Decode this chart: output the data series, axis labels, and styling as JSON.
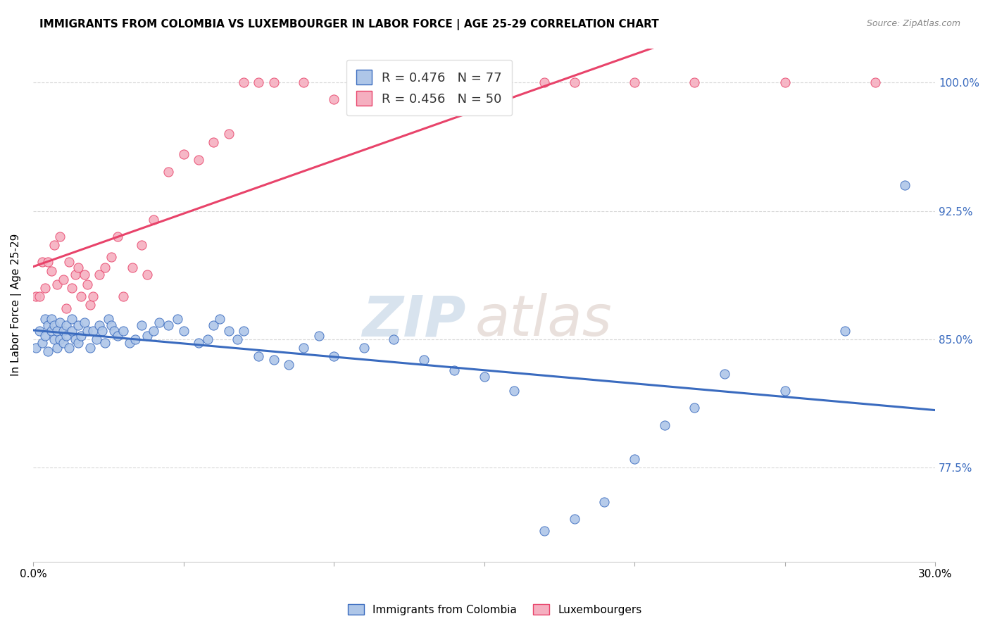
{
  "title": "IMMIGRANTS FROM COLOMBIA VS LUXEMBOURGER IN LABOR FORCE | AGE 25-29 CORRELATION CHART",
  "source": "Source: ZipAtlas.com",
  "ylabel": "In Labor Force | Age 25-29",
  "xlim": [
    0.0,
    0.3
  ],
  "ylim": [
    0.72,
    1.02
  ],
  "xticks": [
    0.0,
    0.05,
    0.1,
    0.15,
    0.2,
    0.25,
    0.3
  ],
  "xticklabels": [
    "0.0%",
    "",
    "",
    "",
    "",
    "",
    "30.0%"
  ],
  "yticks": [
    0.775,
    0.85,
    0.925,
    1.0
  ],
  "yticklabels": [
    "77.5%",
    "85.0%",
    "92.5%",
    "100.0%"
  ],
  "colombia_R": 0.476,
  "colombia_N": 77,
  "luxembourger_R": 0.456,
  "luxembourger_N": 50,
  "colombia_color": "#aec6e8",
  "luxembourger_color": "#f5afc0",
  "colombia_line_color": "#3a6bbf",
  "luxembourger_line_color": "#e8436a",
  "colombia_x": [
    0.001,
    0.002,
    0.003,
    0.004,
    0.004,
    0.005,
    0.005,
    0.006,
    0.006,
    0.007,
    0.007,
    0.008,
    0.008,
    0.009,
    0.009,
    0.01,
    0.01,
    0.011,
    0.011,
    0.012,
    0.013,
    0.013,
    0.014,
    0.015,
    0.015,
    0.016,
    0.017,
    0.018,
    0.019,
    0.02,
    0.021,
    0.022,
    0.023,
    0.024,
    0.025,
    0.026,
    0.027,
    0.028,
    0.03,
    0.032,
    0.034,
    0.036,
    0.038,
    0.04,
    0.042,
    0.045,
    0.048,
    0.05,
    0.055,
    0.058,
    0.06,
    0.062,
    0.065,
    0.068,
    0.07,
    0.075,
    0.08,
    0.085,
    0.09,
    0.095,
    0.1,
    0.11,
    0.12,
    0.13,
    0.14,
    0.15,
    0.16,
    0.17,
    0.18,
    0.19,
    0.2,
    0.21,
    0.22,
    0.23,
    0.25,
    0.27,
    0.29
  ],
  "colombia_y": [
    0.845,
    0.855,
    0.848,
    0.852,
    0.862,
    0.843,
    0.858,
    0.855,
    0.862,
    0.85,
    0.858,
    0.845,
    0.855,
    0.85,
    0.86,
    0.848,
    0.855,
    0.852,
    0.858,
    0.845,
    0.855,
    0.862,
    0.85,
    0.848,
    0.858,
    0.852,
    0.86,
    0.855,
    0.845,
    0.855,
    0.85,
    0.858,
    0.855,
    0.848,
    0.862,
    0.858,
    0.855,
    0.852,
    0.855,
    0.848,
    0.85,
    0.858,
    0.852,
    0.855,
    0.86,
    0.858,
    0.862,
    0.855,
    0.848,
    0.85,
    0.858,
    0.862,
    0.855,
    0.85,
    0.855,
    0.84,
    0.838,
    0.835,
    0.845,
    0.852,
    0.84,
    0.845,
    0.85,
    0.838,
    0.832,
    0.828,
    0.82,
    0.738,
    0.745,
    0.755,
    0.78,
    0.8,
    0.81,
    0.83,
    0.82,
    0.855,
    0.94
  ],
  "luxembourger_x": [
    0.001,
    0.002,
    0.003,
    0.004,
    0.005,
    0.006,
    0.007,
    0.008,
    0.009,
    0.01,
    0.011,
    0.012,
    0.013,
    0.014,
    0.015,
    0.016,
    0.017,
    0.018,
    0.019,
    0.02,
    0.022,
    0.024,
    0.026,
    0.028,
    0.03,
    0.033,
    0.036,
    0.038,
    0.04,
    0.045,
    0.05,
    0.055,
    0.06,
    0.065,
    0.07,
    0.075,
    0.08,
    0.09,
    0.1,
    0.11,
    0.12,
    0.13,
    0.14,
    0.15,
    0.17,
    0.18,
    0.2,
    0.22,
    0.25,
    0.28
  ],
  "luxembourger_y": [
    0.875,
    0.875,
    0.895,
    0.88,
    0.895,
    0.89,
    0.905,
    0.882,
    0.91,
    0.885,
    0.868,
    0.895,
    0.88,
    0.888,
    0.892,
    0.875,
    0.888,
    0.882,
    0.87,
    0.875,
    0.888,
    0.892,
    0.898,
    0.91,
    0.875,
    0.892,
    0.905,
    0.888,
    0.92,
    0.948,
    0.958,
    0.955,
    0.965,
    0.97,
    1.0,
    1.0,
    1.0,
    1.0,
    0.99,
    1.0,
    1.0,
    1.0,
    1.0,
    1.0,
    1.0,
    1.0,
    1.0,
    1.0,
    1.0,
    1.0
  ],
  "legend_label_colombia": "Immigrants from Colombia",
  "legend_label_luxembourger": "Luxembourgers",
  "watermark_zip": "ZIP",
  "watermark_atlas": "atlas",
  "grid_color": "#d8d8d8"
}
